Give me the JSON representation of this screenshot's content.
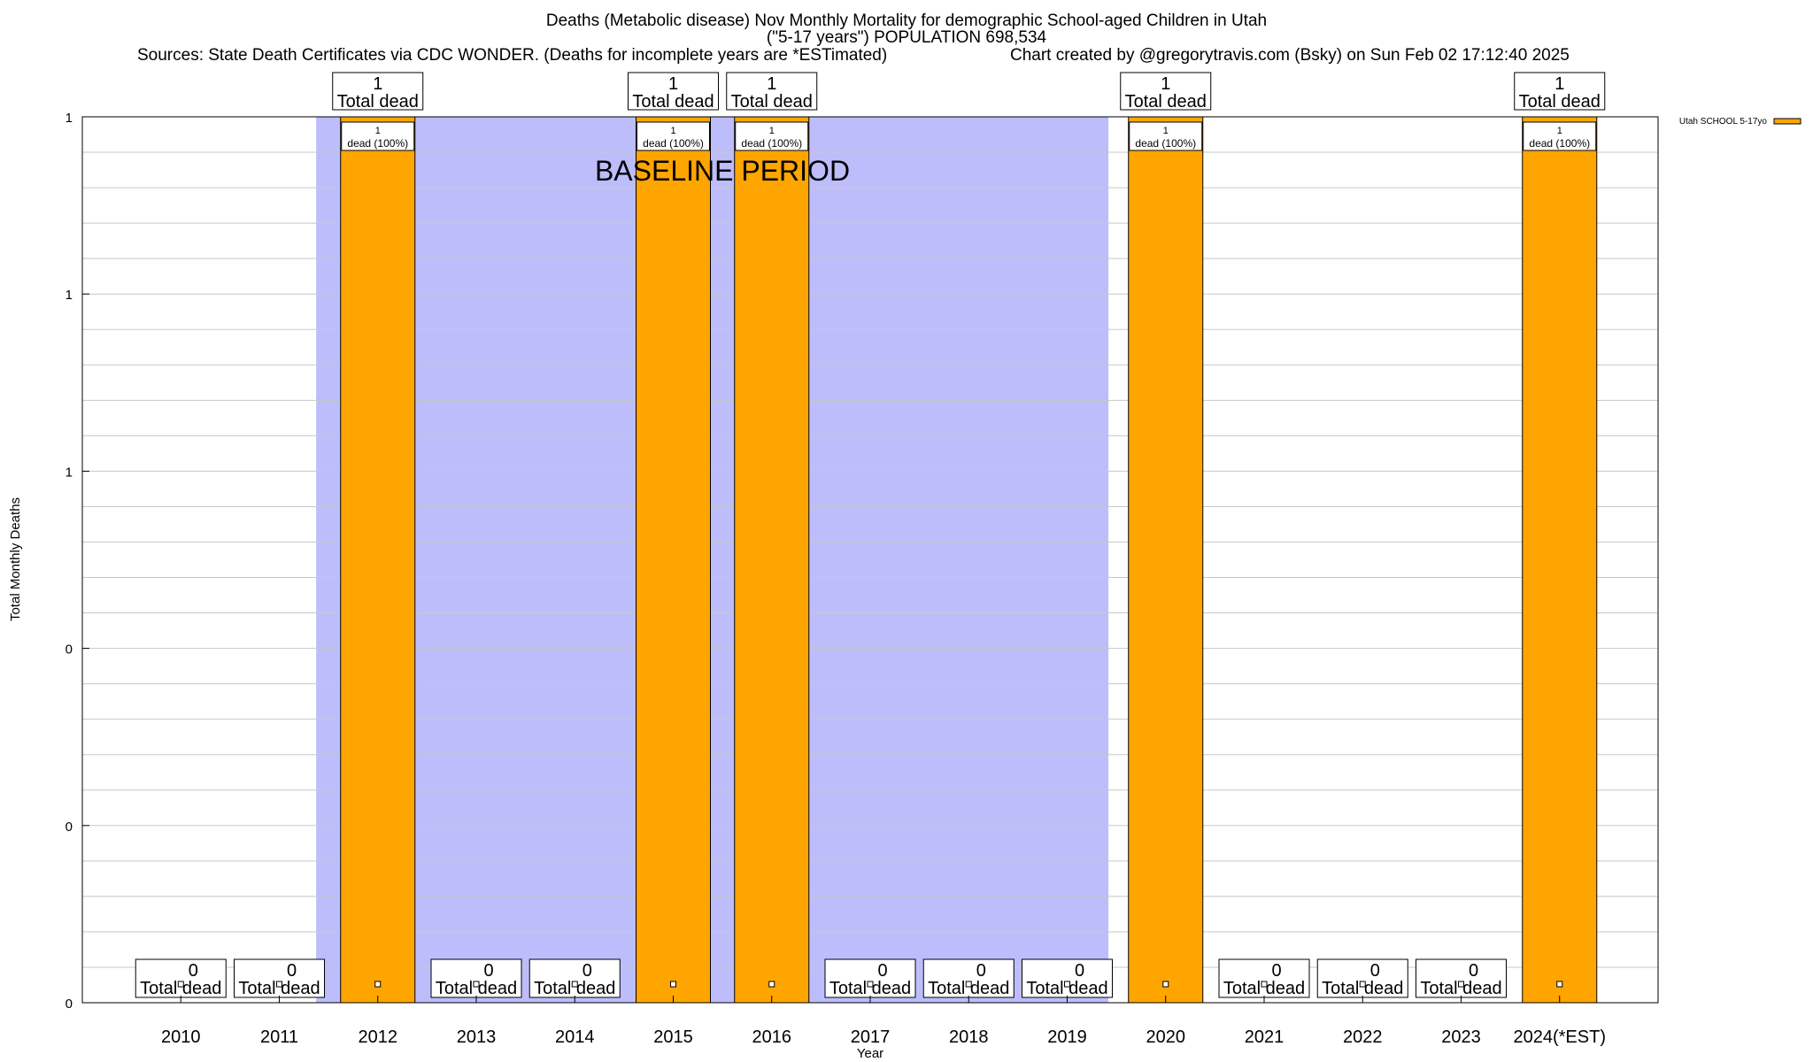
{
  "header": {
    "title_line1": "Deaths (Metabolic disease) Nov Monthly Mortality for demographic School-aged Children in Utah",
    "title_line2": "(\"5-17 years\") POPULATION 698,534",
    "sources": "Sources: State Death Certificates via CDC WONDER. (Deaths for incomplete years are *ESTimated)",
    "credit": "Chart created by @gregorytravis.com (Bsky) on Sun Feb 02 17:12:40 2025"
  },
  "chart_data": {
    "type": "bar",
    "xlabel": "Year",
    "ylabel": "Total Monthly Deaths",
    "ylim": [
      0,
      1
    ],
    "y_tick_labels": [
      "0",
      "0",
      "0",
      "1",
      "1",
      "1"
    ],
    "categories": [
      "2010",
      "2011",
      "2012",
      "2013",
      "2014",
      "2015",
      "2016",
      "2017",
      "2018",
      "2019",
      "2020",
      "2021",
      "2022",
      "2023",
      "2024(*EST)"
    ],
    "series": [
      {
        "name": "Utah SCHOOL 5-17yo",
        "color": "#FFA500",
        "values": [
          0,
          0,
          1,
          0,
          0,
          1,
          1,
          0,
          0,
          0,
          1,
          0,
          0,
          0,
          1
        ]
      }
    ],
    "total_labels": [
      "0",
      "0",
      "1",
      "0",
      "0",
      "1",
      "1",
      "0",
      "0",
      "0",
      "1",
      "0",
      "0",
      "0",
      "1"
    ],
    "total_suffix": "Total dead",
    "bar_labels": [
      "",
      "",
      "1",
      "",
      "",
      "1",
      "1",
      "",
      "",
      "",
      "1",
      "",
      "",
      "",
      "1"
    ],
    "bar_label_suffix": "dead (100%)",
    "baseline_period": {
      "label": "BASELINE PERIOD",
      "from": "2012",
      "to": "2019",
      "color": "#BDBDFC"
    },
    "grid": true,
    "legend_position": "top-right"
  }
}
